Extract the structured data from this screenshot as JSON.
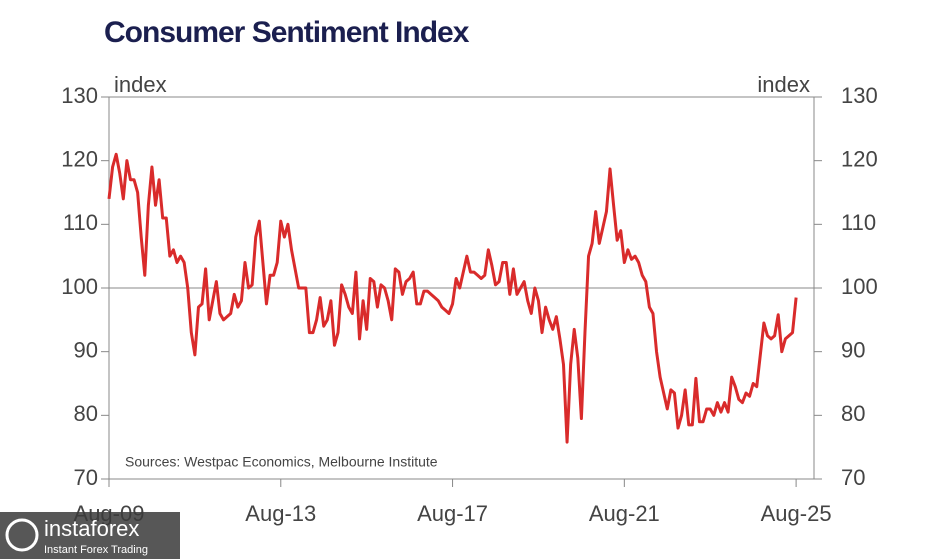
{
  "chart_data": {
    "type": "line",
    "title": "Consumer Sentiment Index",
    "ylabel": "index",
    "y2label": "index",
    "note": "Sources: Westpac Economics, Melbourne Institute",
    "x": [
      "2009-08",
      "2009-09",
      "2009-10",
      "2009-11",
      "2009-12",
      "2010-01",
      "2010-02",
      "2010-03",
      "2010-04",
      "2010-05",
      "2010-06",
      "2010-07",
      "2010-08",
      "2010-09",
      "2010-10",
      "2010-11",
      "2010-12",
      "2011-01",
      "2011-02",
      "2011-03",
      "2011-04",
      "2011-05",
      "2011-06",
      "2011-07",
      "2011-08",
      "2011-09",
      "2011-10",
      "2011-11",
      "2011-12",
      "2012-01",
      "2012-02",
      "2012-03",
      "2012-04",
      "2012-05",
      "2012-06",
      "2012-07",
      "2012-08",
      "2012-09",
      "2012-10",
      "2012-11",
      "2012-12",
      "2013-01",
      "2013-02",
      "2013-03",
      "2013-04",
      "2013-05",
      "2013-06",
      "2013-07",
      "2013-08",
      "2013-09",
      "2013-10",
      "2013-11",
      "2013-12",
      "2014-01",
      "2014-02",
      "2014-03",
      "2014-04",
      "2014-05",
      "2014-06",
      "2014-07",
      "2014-08",
      "2014-09",
      "2014-10",
      "2014-11",
      "2014-12",
      "2015-01",
      "2015-02",
      "2015-03",
      "2015-04",
      "2015-05",
      "2015-06",
      "2015-07",
      "2015-08",
      "2015-09",
      "2015-10",
      "2015-11",
      "2015-12",
      "2016-01",
      "2016-02",
      "2016-03",
      "2016-04",
      "2016-05",
      "2016-06",
      "2016-07",
      "2016-08",
      "2016-09",
      "2016-10",
      "2016-11",
      "2016-12",
      "2017-01",
      "2017-02",
      "2017-03",
      "2017-04",
      "2017-05",
      "2017-06",
      "2017-07",
      "2017-08",
      "2017-09",
      "2017-10",
      "2017-11",
      "2017-12",
      "2018-01",
      "2018-02",
      "2018-03",
      "2018-04",
      "2018-05",
      "2018-06",
      "2018-07",
      "2018-08",
      "2018-09",
      "2018-10",
      "2018-11",
      "2018-12",
      "2019-01",
      "2019-02",
      "2019-03",
      "2019-04",
      "2019-05",
      "2019-06",
      "2019-07",
      "2019-08",
      "2019-09",
      "2019-10",
      "2019-11",
      "2019-12",
      "2020-01",
      "2020-02",
      "2020-03",
      "2020-04",
      "2020-05",
      "2020-06",
      "2020-07",
      "2020-08",
      "2020-09",
      "2020-10",
      "2020-11",
      "2020-12",
      "2021-01",
      "2021-02",
      "2021-03",
      "2021-04",
      "2021-05",
      "2021-06",
      "2021-07",
      "2021-08",
      "2021-09",
      "2021-10",
      "2021-11",
      "2021-12",
      "2022-01",
      "2022-02",
      "2022-03",
      "2022-04",
      "2022-05",
      "2022-06",
      "2022-07",
      "2022-08",
      "2022-09",
      "2022-10",
      "2022-11",
      "2022-12",
      "2023-01",
      "2023-02",
      "2023-03",
      "2023-04",
      "2023-05",
      "2023-06",
      "2023-07",
      "2023-08",
      "2023-09",
      "2023-10",
      "2023-11",
      "2023-12",
      "2024-01",
      "2024-02",
      "2024-03",
      "2024-04",
      "2024-05",
      "2024-06",
      "2024-07",
      "2024-08",
      "2024-09",
      "2024-10",
      "2024-11",
      "2024-12",
      "2025-01",
      "2025-02",
      "2025-03",
      "2025-04",
      "2025-05",
      "2025-06",
      "2025-07",
      "2025-08"
    ],
    "series": [
      {
        "name": "Consumer Sentiment Index",
        "color": "#d92b2b",
        "values": [
          114,
          119,
          121,
          118,
          114,
          120,
          117,
          117,
          115,
          108,
          102,
          113,
          119,
          113,
          117,
          111,
          111,
          105,
          106,
          104,
          105,
          104,
          100,
          93,
          89.5,
          97,
          97.5,
          103,
          95,
          98,
          101,
          96,
          95,
          95.5,
          96,
          99,
          97,
          98,
          104,
          100,
          100.5,
          108,
          110.5,
          104,
          97.5,
          102,
          102,
          104,
          110.5,
          108,
          110,
          106,
          103,
          100,
          100,
          100,
          93,
          93,
          95,
          98.5,
          94,
          95,
          98,
          91,
          93,
          100.5,
          99,
          97,
          96,
          102.5,
          92,
          98,
          93.5,
          101.5,
          101,
          97,
          100.5,
          100,
          98,
          95,
          103,
          102.5,
          99,
          101,
          101.5,
          102.5,
          97.5,
          97.5,
          99.5,
          99.5,
          99,
          98.5,
          98,
          97,
          96.5,
          96,
          97.5,
          101.5,
          100,
          102.5,
          105,
          102.5,
          102.5,
          102,
          101.5,
          102,
          106,
          103.5,
          100.5,
          101,
          104,
          104,
          99,
          103,
          99,
          100,
          101,
          98,
          96,
          100,
          98,
          93,
          97,
          95,
          93.5,
          95.5,
          92,
          88,
          75.8,
          88,
          93.5,
          89,
          79.5,
          93,
          105,
          107,
          112,
          107,
          109.5,
          112,
          118.7,
          113,
          107.5,
          109,
          104,
          106,
          104.5,
          105,
          104,
          102,
          101,
          97,
          96,
          90,
          86,
          83.5,
          81,
          84,
          83.5,
          78,
          80,
          84,
          78.5,
          78.5,
          85.8,
          79,
          79,
          81,
          81,
          80,
          82,
          80.5,
          82,
          80.5,
          86,
          84.5,
          82.5,
          82,
          83.5,
          83,
          85,
          84.5,
          89.5,
          94.5,
          92.5,
          92,
          92.5,
          95.8,
          90,
          92,
          92.5,
          93,
          98.5
        ]
      }
    ],
    "xlim": [
      "2009-08",
      "2026-01"
    ],
    "xticks": [
      {
        "value": "2009-08",
        "label": "Aug-09"
      },
      {
        "value": "2013-08",
        "label": "Aug-13"
      },
      {
        "value": "2017-08",
        "label": "Aug-17"
      },
      {
        "value": "2021-08",
        "label": "Aug-21"
      },
      {
        "value": "2025-08",
        "label": "Aug-25"
      }
    ],
    "ylim": [
      70,
      130
    ],
    "yticks": [
      70,
      80,
      90,
      100,
      110,
      120,
      130
    ],
    "y2lim": [
      70,
      130
    ],
    "y2ticks": [
      70,
      80,
      90,
      100,
      110,
      120,
      130
    ],
    "reference_line": 100
  },
  "watermark": {
    "brand": "instaforex",
    "tagline": "Instant Forex Trading"
  }
}
